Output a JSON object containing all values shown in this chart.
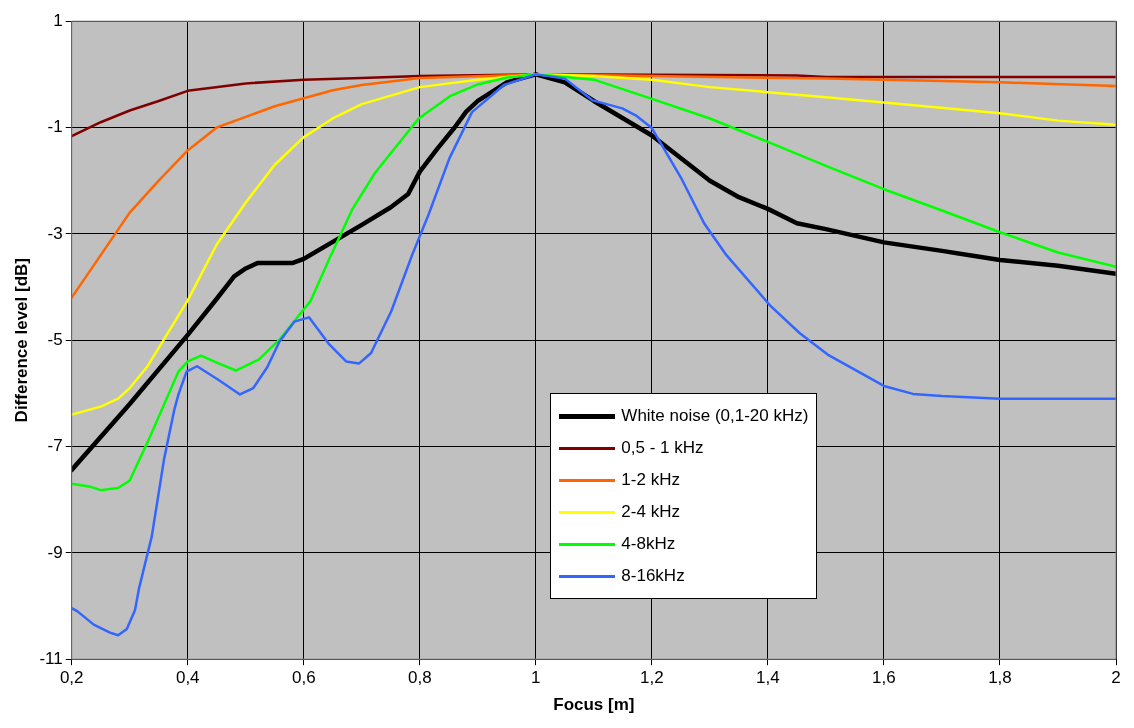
{
  "chart_data": {
    "type": "line",
    "xlabel": "Focus [m]",
    "ylabel": "Difference level [dB]",
    "xlim": [
      0.2,
      2
    ],
    "ylim": [
      -11,
      1
    ],
    "xticks": [
      {
        "value": 0.2,
        "label": "0,2"
      },
      {
        "value": 0.4,
        "label": "0,4"
      },
      {
        "value": 0.6,
        "label": "0,6"
      },
      {
        "value": 0.8,
        "label": "0,8"
      },
      1,
      {
        "value": 1.2,
        "label": "1,2"
      },
      {
        "value": 1.4,
        "label": "1,4"
      },
      {
        "value": 1.6,
        "label": "1,6"
      },
      {
        "value": 1.8,
        "label": "1,8"
      },
      2
    ],
    "yticks": [
      1,
      -1,
      -3,
      -5,
      -7,
      -9,
      -11
    ],
    "grid": true,
    "legend": "bottom",
    "marker": "none",
    "line_style": "solid",
    "series": [
      {
        "name": "White noise (0,1-20 kHz)",
        "color": "#000000",
        "x": [
          0.2,
          0.3,
          0.4,
          0.45,
          0.48,
          0.5,
          0.52,
          0.58,
          0.6,
          0.65,
          0.7,
          0.75,
          0.78,
          0.8,
          0.83,
          0.86,
          0.88,
          0.9,
          0.95,
          1,
          1.05,
          1.1,
          1.2,
          1.3,
          1.35,
          1.4,
          1.45,
          1.5,
          1.6,
          1.7,
          1.8,
          1.9,
          2
        ],
        "values": [
          -7.44,
          -6.2,
          -4.9,
          -4.22,
          -3.8,
          -3.65,
          -3.55,
          -3.55,
          -3.47,
          -3.15,
          -2.83,
          -2.5,
          -2.25,
          -1.83,
          -1.4,
          -1.0,
          -0.7,
          -0.5,
          -0.15,
          0,
          -0.15,
          -0.5,
          -1.15,
          -2.0,
          -2.31,
          -2.53,
          -2.8,
          -2.91,
          -3.16,
          -3.32,
          -3.49,
          -3.6,
          -3.75
        ]
      },
      {
        "name": "0,5 - 1 kHz",
        "color": "#800000",
        "x": [
          0.2,
          0.25,
          0.3,
          0.35,
          0.4,
          0.5,
          0.6,
          0.7,
          0.8,
          1,
          1.45,
          1.5,
          2
        ],
        "values": [
          -1.16,
          -0.9,
          -0.68,
          -0.5,
          -0.31,
          -0.17,
          -0.1,
          -0.07,
          -0.03,
          0,
          -0.02,
          -0.05,
          -0.05
        ]
      },
      {
        "name": "1-2 kHz",
        "color": "#ff6600",
        "x": [
          0.2,
          0.25,
          0.3,
          0.35,
          0.4,
          0.45,
          0.5,
          0.55,
          0.6,
          0.65,
          0.7,
          0.8,
          1,
          1.2,
          1.5,
          1.8,
          2
        ],
        "values": [
          -4.2,
          -3.4,
          -2.6,
          -2.0,
          -1.43,
          -1.0,
          -0.8,
          -0.6,
          -0.45,
          -0.3,
          -0.2,
          -0.07,
          0,
          -0.03,
          -0.08,
          -0.15,
          -0.22
        ]
      },
      {
        "name": "2-4 kHz",
        "color": "#ffff00",
        "x": [
          0.2,
          0.25,
          0.28,
          0.3,
          0.33,
          0.4,
          0.45,
          0.5,
          0.55,
          0.6,
          0.65,
          0.7,
          0.8,
          0.9,
          1,
          1.1,
          1.2,
          1.3,
          1.5,
          1.6,
          1.8,
          1.9,
          2
        ],
        "values": [
          -6.4,
          -6.25,
          -6.1,
          -5.9,
          -5.5,
          -4.25,
          -3.2,
          -2.41,
          -1.7,
          -1.18,
          -0.83,
          -0.56,
          -0.24,
          -0.1,
          0,
          -0.03,
          -0.1,
          -0.24,
          -0.43,
          -0.53,
          -0.73,
          -0.87,
          -0.95
        ]
      },
      {
        "name": "4-8kHz",
        "color": "#00ff00",
        "x": [
          0.2,
          0.23,
          0.25,
          0.28,
          0.3,
          0.334,
          0.36,
          0.384,
          0.4,
          0.423,
          0.452,
          0.483,
          0.523,
          0.558,
          0.595,
          0.612,
          0.644,
          0.684,
          0.723,
          0.798,
          0.852,
          0.9,
          0.95,
          1,
          1.1,
          1.2,
          1.3,
          1.4,
          1.5,
          1.6,
          1.7,
          1.8,
          1.9,
          2
        ],
        "values": [
          -7.7,
          -7.75,
          -7.82,
          -7.78,
          -7.64,
          -6.84,
          -6.19,
          -5.59,
          -5.4,
          -5.29,
          -5.43,
          -5.57,
          -5.36,
          -4.99,
          -4.49,
          -4.26,
          -3.47,
          -2.53,
          -1.85,
          -0.83,
          -0.41,
          -0.19,
          -0.06,
          0,
          -0.1,
          -0.46,
          -0.83,
          -1.27,
          -1.72,
          -2.16,
          -2.56,
          -2.97,
          -3.35,
          -3.62
        ]
      },
      {
        "name": "8-16kHz",
        "color": "#3366ff",
        "x": [
          0.2,
          0.21,
          0.238,
          0.266,
          0.28,
          0.295,
          0.309,
          0.316,
          0.338,
          0.359,
          0.377,
          0.384,
          0.398,
          0.416,
          0.452,
          0.49,
          0.513,
          0.537,
          0.558,
          0.584,
          0.609,
          0.644,
          0.673,
          0.695,
          0.716,
          0.751,
          0.787,
          0.815,
          0.851,
          0.89,
          0.945,
          1,
          1.05,
          1.098,
          1.149,
          1.172,
          1.2,
          1.25,
          1.29,
          1.327,
          1.404,
          1.455,
          1.503,
          1.6,
          1.65,
          1.7,
          1.8,
          2
        ],
        "values": [
          -10.04,
          -10.1,
          -10.35,
          -10.5,
          -10.55,
          -10.43,
          -10.08,
          -9.67,
          -8.69,
          -7.25,
          -6.3,
          -6.02,
          -5.59,
          -5.49,
          -5.74,
          -6.02,
          -5.9,
          -5.51,
          -5.03,
          -4.65,
          -4.57,
          -5.08,
          -5.4,
          -5.44,
          -5.24,
          -4.45,
          -3.39,
          -2.64,
          -1.58,
          -0.71,
          -0.2,
          0,
          -0.08,
          -0.49,
          -0.64,
          -0.77,
          -1.01,
          -1.94,
          -2.8,
          -3.38,
          -4.35,
          -4.87,
          -5.27,
          -5.86,
          -6.01,
          -6.05,
          -6.1,
          -6.1
        ]
      }
    ]
  }
}
